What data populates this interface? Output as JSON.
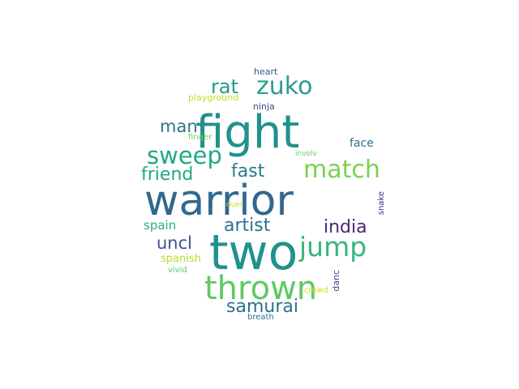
{
  "wordcloud": {
    "words": [
      {
        "key": "warrior",
        "text": "warrior",
        "color": "#31688e"
      },
      {
        "key": "two",
        "text": "two",
        "color": "#21918c"
      },
      {
        "key": "fight",
        "text": "fight",
        "color": "#21918c"
      },
      {
        "key": "thrown",
        "text": "thrown",
        "color": "#5ec962"
      },
      {
        "key": "match",
        "text": "match",
        "color": "#7ad151"
      },
      {
        "key": "zuko",
        "text": "zuko",
        "color": "#2a9d8f"
      },
      {
        "key": "sweep",
        "text": "sweep",
        "color": "#22a884"
      },
      {
        "key": "jump",
        "text": "jump",
        "color": "#35b779"
      },
      {
        "key": "rat",
        "text": "rat",
        "color": "#1f9e89"
      },
      {
        "key": "fast",
        "text": "fast",
        "color": "#2a788e"
      },
      {
        "key": "friend",
        "text": "friend",
        "color": "#22a884"
      },
      {
        "key": "artist",
        "text": "artist",
        "color": "#2c728e"
      },
      {
        "key": "india",
        "text": "india",
        "color": "#482878"
      },
      {
        "key": "samurai",
        "text": "samurai",
        "color": "#2c728e"
      },
      {
        "key": "man",
        "text": "man",
        "color": "#2c728e"
      },
      {
        "key": "uncl",
        "text": "uncl",
        "color": "#3b528b"
      },
      {
        "key": "spain",
        "text": "spain",
        "color": "#29af7f"
      },
      {
        "key": "face",
        "text": "face",
        "color": "#2c728e"
      },
      {
        "key": "spanish",
        "text": "spanish",
        "color": "#b5de2b"
      },
      {
        "key": "finger",
        "text": "finger",
        "color": "#6ccd5a"
      },
      {
        "key": "playground",
        "text": "playground",
        "color": "#bddf26"
      },
      {
        "key": "heart",
        "text": "heart",
        "color": "#3b528b"
      },
      {
        "key": "ninja",
        "text": "ninja",
        "color": "#3e4a89"
      },
      {
        "key": "involv",
        "text": "involv",
        "color": "#6ccd5a"
      },
      {
        "key": "duel",
        "text": "duel",
        "color": "#c8e020"
      },
      {
        "key": "vivid",
        "text": "vivid",
        "color": "#5ec962"
      },
      {
        "key": "crowd",
        "text": "crowd",
        "color": "#d0e11c"
      },
      {
        "key": "breath",
        "text": "breath",
        "color": "#2c728e"
      },
      {
        "key": "danc",
        "text": "danc",
        "color": "#3e4a89"
      },
      {
        "key": "snake",
        "text": "snake",
        "color": "#482878"
      }
    ]
  }
}
